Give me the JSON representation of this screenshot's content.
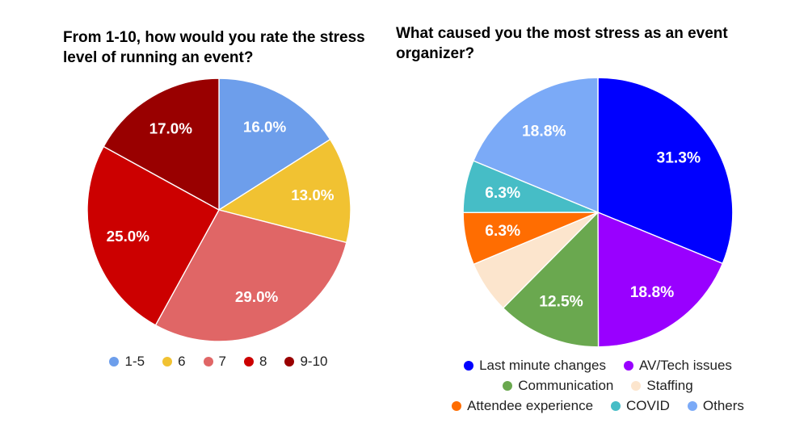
{
  "page": {
    "background_color": "#ffffff",
    "title_color": "#000000",
    "legend_text_color": "#222222",
    "slice_label_color": "#ffffff"
  },
  "chart_data": [
    {
      "type": "pie",
      "title": "From 1-10, how would you rate the stress level of running an event?",
      "legend_position": "bottom",
      "direction": "clockwise",
      "start_angle_deg": 0,
      "labels": [
        "1-5",
        "6",
        "7",
        "8",
        "9-10"
      ],
      "values": [
        16.0,
        13.0,
        29.0,
        25.0,
        17.0
      ],
      "percent_labels": [
        "16.0%",
        "13.0%",
        "29.0%",
        "25.0%",
        "17.0%"
      ],
      "percent_label_visible": [
        true,
        true,
        true,
        true,
        true
      ],
      "colors": [
        "#6D9EEB",
        "#F1C232",
        "#E06666",
        "#CC0000",
        "#990000"
      ],
      "legend_rows": [
        [
          0,
          1,
          2,
          3,
          4
        ]
      ]
    },
    {
      "type": "pie",
      "title": "What caused you the most stress as an event organizer?",
      "legend_position": "bottom",
      "direction": "clockwise",
      "start_angle_deg": 0,
      "labels": [
        "Last minute changes",
        "AV/Tech issues",
        "Communication",
        "Staffing",
        "Attendee experience",
        "COVID",
        "Others"
      ],
      "values": [
        31.3,
        18.8,
        12.5,
        6.3,
        6.3,
        6.3,
        18.8
      ],
      "percent_labels": [
        "31.3%",
        "18.8%",
        "12.5%",
        "6.3%",
        "6.3%",
        "6.3%",
        "18.8%"
      ],
      "percent_label_visible": [
        true,
        true,
        true,
        false,
        true,
        true,
        true
      ],
      "colors": [
        "#0000FF",
        "#9900FF",
        "#6AA84F",
        "#FCE5CD",
        "#FF6D01",
        "#46BDC6",
        "#7BAAF7"
      ],
      "legend_rows": [
        [
          0,
          1
        ],
        [
          2,
          3
        ],
        [
          4,
          5,
          6
        ]
      ]
    }
  ]
}
